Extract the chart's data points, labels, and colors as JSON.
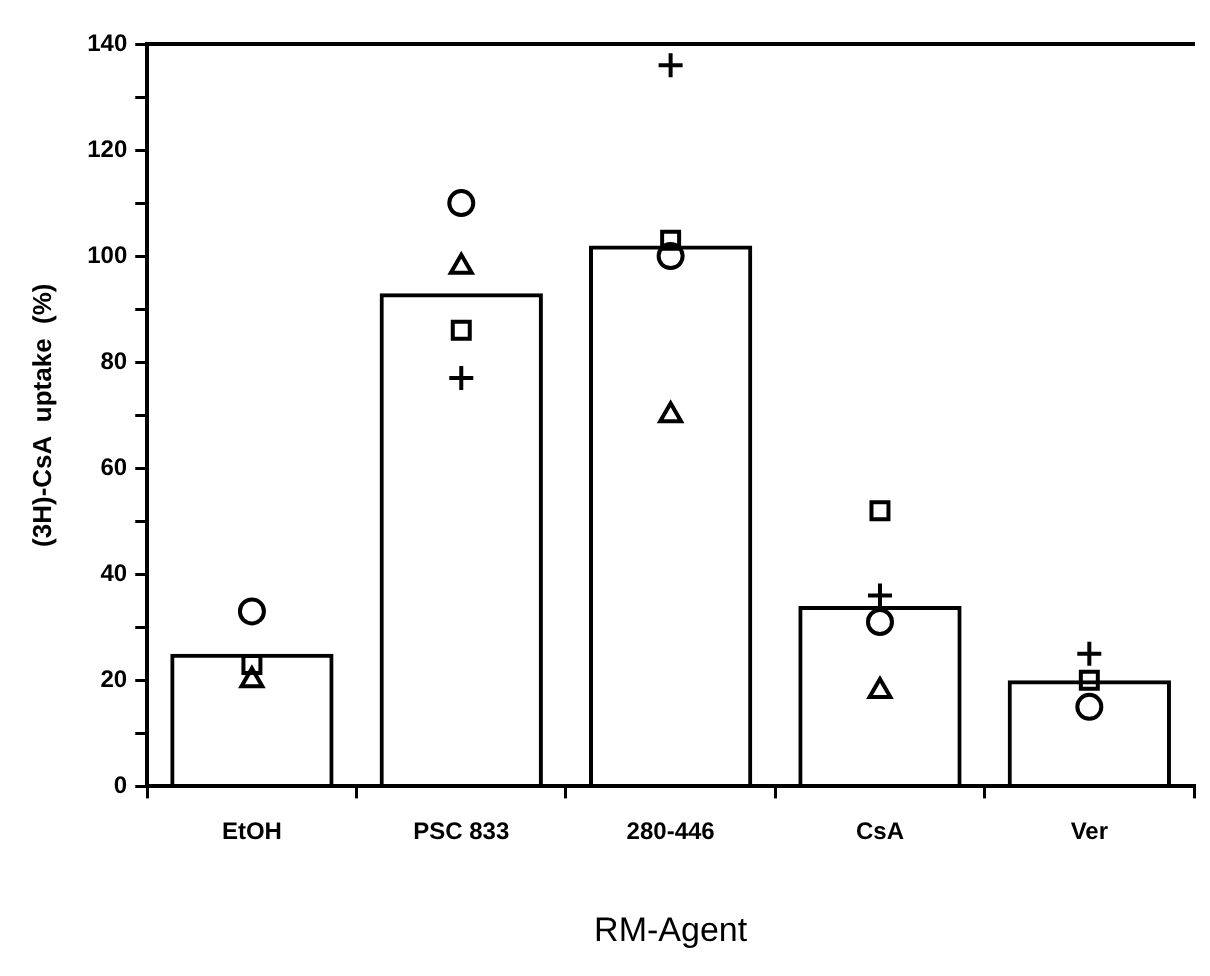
{
  "chart_data": {
    "type": "bar",
    "xlabel": "RM-Agent",
    "ylabel": "(3H)-CsA  uptake  (%)",
    "categories": [
      "EtOH",
      "PSC 833",
      "280-446",
      "CsA",
      "Ver"
    ],
    "series": [
      {
        "type": "bar",
        "color": "#000000",
        "values": [
          25,
          93,
          102,
          34,
          20
        ]
      },
      {
        "type": "scatter",
        "marker": "circle",
        "color": "#000000",
        "x": [
          "EtOH",
          "PSC 833",
          "280-446",
          "CsA",
          "Ver"
        ],
        "values": [
          33,
          110,
          100,
          31,
          15
        ]
      },
      {
        "type": "scatter",
        "marker": "triangle",
        "color": "#000000",
        "x": [
          "EtOH",
          "PSC 833",
          "280-446",
          "CsA",
          "Ver"
        ],
        "values": [
          20,
          98,
          70,
          18,
          null
        ]
      },
      {
        "type": "scatter",
        "marker": "square",
        "color": "#000000",
        "x": [
          "EtOH",
          "PSC 833",
          "280-446",
          "CsA",
          "Ver"
        ],
        "values": [
          23,
          86,
          103,
          52,
          20
        ]
      },
      {
        "type": "scatter",
        "marker": "cross",
        "color": "#000000",
        "x": [
          "EtOH",
          "PSC 833",
          "280-446",
          "CsA",
          "Ver"
        ],
        "values": [
          null,
          77,
          136,
          36,
          25
        ]
      }
    ],
    "ylim": [
      0,
      140
    ],
    "yticks": [
      0,
      {
        "value": 10,
        "label": null
      },
      20,
      {
        "value": 30,
        "label": null
      },
      40,
      {
        "value": 50,
        "label": null
      },
      60,
      {
        "value": 70,
        "label": null
      },
      80,
      {
        "value": 90,
        "label": null
      },
      100,
      {
        "value": 110,
        "label": null
      },
      120,
      {
        "value": 130,
        "label": null
      },
      140
    ],
    "grid": false,
    "legend": false
  }
}
